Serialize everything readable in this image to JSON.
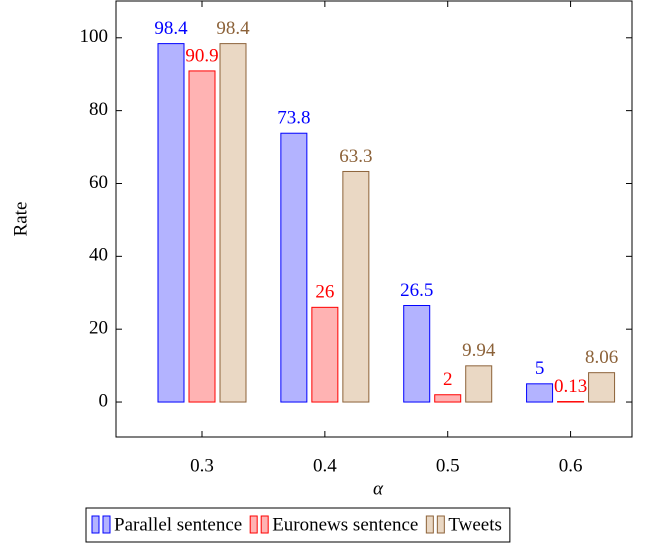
{
  "chart_data": {
    "type": "bar",
    "x": [
      0.3,
      0.4,
      0.5,
      0.6
    ],
    "xlim": [
      0.23,
      0.65
    ],
    "xticks": [
      0.3,
      0.4,
      0.5,
      0.6
    ],
    "ylim": [
      -9.6,
      110.1
    ],
    "yticks": [
      0,
      20,
      40,
      60,
      80,
      100
    ],
    "xlabel": "α",
    "ylabel": "Rate",
    "legend": "below",
    "series": [
      {
        "name": "Parallel sentence",
        "color": "#0000ff",
        "fill": "#b3b3ff",
        "values": [
          98.4,
          73.8,
          26.5,
          5
        ]
      },
      {
        "name": "Euronews sentence",
        "color": "#ff0000",
        "fill": "#ffb3b3",
        "values": [
          90.9,
          26,
          2,
          0.13
        ]
      },
      {
        "name": "Tweets",
        "color": "#8c6239",
        "fill": "#ead8c4",
        "values": [
          98.4,
          63.3,
          9.94,
          8.06
        ]
      }
    ]
  }
}
